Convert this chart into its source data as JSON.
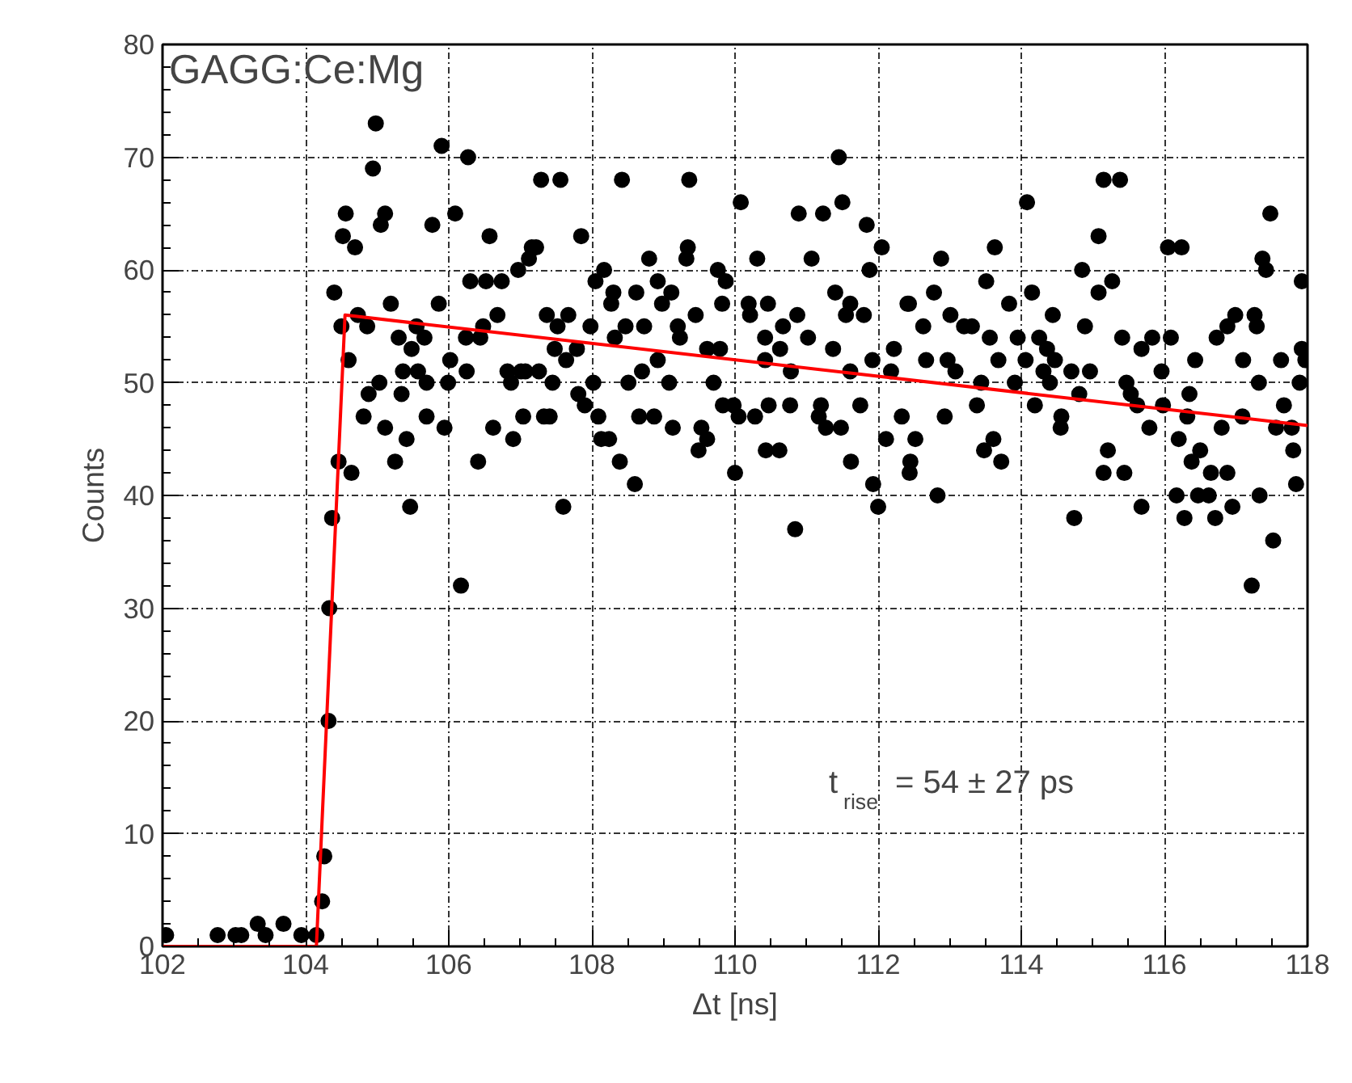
{
  "chart_data": {
    "type": "scatter",
    "title": "GAGG:Ce:Mg",
    "xlabel": "Δt [ns]",
    "ylabel": "Counts",
    "xlim": [
      102,
      118
    ],
    "ylim": [
      0,
      80
    ],
    "xticks": [
      102,
      104,
      106,
      108,
      110,
      112,
      114,
      116,
      118
    ],
    "yticks": [
      0,
      10,
      20,
      30,
      40,
      50,
      60,
      70,
      80
    ],
    "grid": true,
    "annotations": [
      "t$_{rise}$ = 54 ± 27 ps"
    ],
    "series": [
      {
        "color": "#000000",
        "marker": "circle",
        "x": [
          102.05,
          102.77,
          103.02,
          103.1,
          103.33,
          103.44,
          103.69,
          103.94,
          104.15,
          104.23,
          104.26,
          104.32,
          104.33,
          104.37,
          104.46,
          104.64,
          104.4,
          104.5,
          104.73,
          104.86,
          104.6,
          104.98,
          104.94,
          104.56,
          104.52,
          104.69,
          105.11,
          105.05,
          105.9,
          106.27,
          106.09,
          105.77,
          106.57,
          105.19,
          105.3,
          105.48,
          105.66,
          105.55,
          105.86,
          105.36,
          105.34,
          105.03,
          104.88,
          104.81,
          105.11,
          105.41,
          105.25,
          105.69,
          105.94,
          105.99,
          105.57,
          105.69,
          106.02,
          106.24,
          106.25,
          106.44,
          106.48,
          106.3,
          106.52,
          106.74,
          106.68,
          106.97,
          107.12,
          107.22,
          107.29,
          106.41,
          106.62,
          106.9,
          107.04,
          106.82,
          107.07,
          106.87,
          105.46,
          106.17,
          107.56,
          108.42,
          109.36,
          111.45,
          110.08,
          110.89,
          111.23,
          111.5,
          111.84,
          112.05,
          107.85,
          107.16,
          108.8,
          109.34,
          109.32,
          110.31,
          111.07,
          111.88,
          108.17,
          108.05,
          109.76,
          109.87,
          108.92,
          108.3,
          108.62,
          109.11,
          108.27,
          108.98,
          109.82,
          110.19,
          110.46,
          111.4,
          111.61,
          112.41,
          111.55,
          111.8,
          110.87,
          110.21,
          109.45,
          108.73,
          108.47,
          109.2,
          107.67,
          107.37,
          107.52,
          107.98,
          108.32,
          109.23,
          110.42,
          110.67,
          111.02,
          110.63,
          109.61,
          109.79,
          111.37,
          112.22,
          107.48,
          107.79,
          107.64,
          108.92,
          110.42,
          111.92,
          107.01,
          107.26,
          108.7,
          110.78,
          111.61,
          112.18,
          107.45,
          108.02,
          108.51,
          109.08,
          109.7,
          107.81,
          107.9,
          109.83,
          109.98,
          110.47,
          110.77,
          111.2,
          111.75,
          107.33,
          107.41,
          108.09,
          108.66,
          108.87,
          110.05,
          110.28,
          111.17,
          112.33,
          109.13,
          109.53,
          111.27,
          111.48,
          108.13,
          108.24,
          109.61,
          112.11,
          109.49,
          110.43,
          110.62,
          108.39,
          111.62,
          112.45,
          108.6,
          110.0,
          111.93,
          107.6,
          112.0,
          110.84,
          115.15,
          115.38,
          114.08,
          117.48,
          115.08,
          116.05,
          116.24,
          113.63,
          112.88,
          117.37,
          117.42,
          114.85,
          113.51,
          117.92,
          115.27,
          114.15,
          115.08,
          112.43,
          112.78,
          113.83,
          114.44,
          113.01,
          112.63,
          113.2,
          113.31,
          113.56,
          114.89,
          115.41,
          115.68,
          115.83,
          116.09,
          116.73,
          116.88,
          116.99,
          117.26,
          117.29,
          114.25,
          113.95,
          114.36,
          114.47,
          112.67,
          112.97,
          113.68,
          114.06,
          116.43,
          117.1,
          117.63,
          117.97,
          113.08,
          114.31,
          114.7,
          114.96,
          115.96,
          113.44,
          113.91,
          114.4,
          115.47,
          117.32,
          117.89,
          114.81,
          115.53,
          116.35,
          113.38,
          114.19,
          115.62,
          115.98,
          117.67,
          112.93,
          114.56,
          116.32,
          117.09,
          115.79,
          116.8,
          117.56,
          117.78,
          114.55,
          112.52,
          116.2,
          113.61,
          116.5,
          115.21,
          113.48,
          117.8,
          113.72,
          116.38,
          112.44,
          115.15,
          115.44,
          116.65,
          116.88,
          117.84,
          112.83,
          116.17,
          116.47,
          116.62,
          117.33,
          115.68,
          116.95,
          114.74,
          116.28,
          116.71,
          117.52,
          117.22,
          117.92
        ],
        "values": [
          1,
          1,
          1,
          1,
          2,
          1,
          2,
          1,
          1,
          4,
          8,
          20,
          30,
          38,
          43,
          42,
          58,
          55,
          56,
          55,
          52,
          73,
          69,
          65,
          63,
          62,
          65,
          64,
          71,
          70,
          65,
          64,
          63,
          57,
          54,
          53,
          54,
          55,
          57,
          51,
          49,
          50,
          49,
          47,
          46,
          45,
          43,
          47,
          46,
          50,
          51,
          50,
          52,
          54,
          51,
          54,
          55,
          59,
          59,
          59,
          56,
          60,
          61,
          62,
          68,
          43,
          46,
          45,
          47,
          51,
          51,
          50,
          39,
          32,
          68,
          68,
          68,
          70,
          66,
          65,
          65,
          66,
          64,
          62,
          63,
          62,
          61,
          62,
          61,
          61,
          61,
          60,
          60,
          59,
          60,
          59,
          59,
          58,
          58,
          58,
          57,
          57,
          57,
          57,
          57,
          58,
          57,
          57,
          56,
          56,
          56,
          56,
          56,
          55,
          55,
          55,
          56,
          56,
          55,
          55,
          54,
          54,
          54,
          55,
          54,
          53,
          53,
          53,
          53,
          53,
          53,
          53,
          52,
          52,
          52,
          52,
          51,
          51,
          51,
          51,
          51,
          51,
          50,
          50,
          50,
          50,
          50,
          49,
          48,
          48,
          48,
          48,
          48,
          48,
          48,
          47,
          47,
          47,
          47,
          47,
          47,
          47,
          47,
          47,
          46,
          46,
          46,
          46,
          45,
          45,
          45,
          45,
          44,
          44,
          44,
          43,
          43,
          43,
          41,
          42,
          41,
          39,
          39,
          37,
          68,
          68,
          66,
          65,
          63,
          62,
          62,
          62,
          61,
          61,
          60,
          60,
          59,
          59,
          59,
          58,
          58,
          57,
          58,
          57,
          56,
          56,
          55,
          55,
          55,
          54,
          55,
          54,
          53,
          54,
          54,
          54,
          55,
          56,
          56,
          55,
          54,
          54,
          53,
          52,
          52,
          52,
          52,
          52,
          52,
          52,
          52,
          52,
          51,
          51,
          51,
          51,
          51,
          50,
          50,
          50,
          50,
          50,
          50,
          49,
          49,
          49,
          48,
          48,
          48,
          48,
          48,
          47,
          47,
          47,
          47,
          46,
          46,
          46,
          46,
          46,
          45,
          45,
          45,
          44,
          44,
          44,
          44,
          43,
          43,
          42,
          42,
          42,
          42,
          42,
          41,
          40,
          40,
          40,
          40,
          40,
          39,
          39,
          38,
          38,
          38,
          36,
          32,
          53
        ]
      },
      {
        "type": "line",
        "color": "#ff0000",
        "x": [
          102,
          104.15,
          104.55,
          118
        ],
        "values": [
          0,
          0,
          56,
          46.2
        ]
      }
    ]
  }
}
